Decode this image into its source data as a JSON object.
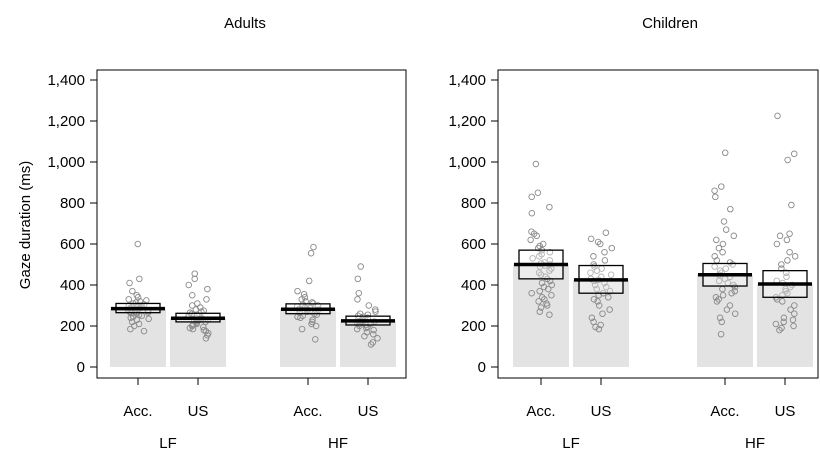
{
  "chart_data": {
    "type": "pirateplot",
    "ylabel": "Gaze duration (ms)",
    "ylim": [
      0,
      1400
    ],
    "yticks": [
      0,
      200,
      400,
      600,
      800,
      1000,
      1200,
      1400
    ],
    "ytick_labels": [
      "0",
      "200",
      "400",
      "600",
      "800",
      "1,000",
      "1,200",
      "1,400"
    ],
    "grid": false,
    "panels": [
      {
        "title": "Adults",
        "groups": [
          {
            "label": "LF",
            "conditions": [
              {
                "label": "Acc.",
                "mean": 285,
                "ci_low": 265,
                "ci_high": 310,
                "points": [
                  600,
                  430,
                  410,
                  370,
                  350,
                  340,
                  330,
                  325,
                  320,
                  315,
                  310,
                  305,
                  300,
                  298,
                  295,
                  292,
                  290,
                  288,
                  285,
                  282,
                  280,
                  278,
                  275,
                  272,
                  270,
                  268,
                  265,
                  262,
                  260,
                  255,
                  250,
                  245,
                  240,
                  235,
                  230,
                  220,
                  210,
                  200,
                  185,
                  175
                ]
              },
              {
                "label": "US",
                "mean": 238,
                "ci_low": 220,
                "ci_high": 262,
                "points": [
                  455,
                  430,
                  400,
                  380,
                  350,
                  330,
                  310,
                  300,
                  290,
                  280,
                  275,
                  270,
                  265,
                  260,
                  255,
                  250,
                  245,
                  240,
                  238,
                  235,
                  232,
                  230,
                  228,
                  225,
                  222,
                  220,
                  215,
                  210,
                  205,
                  200,
                  195,
                  190,
                  185,
                  180,
                  175,
                  165,
                  155,
                  140
                ]
              }
            ]
          },
          {
            "label": "HF",
            "conditions": [
              {
                "label": "Acc.",
                "mean": 282,
                "ci_low": 260,
                "ci_high": 308,
                "points": [
                  585,
                  555,
                  420,
                  370,
                  355,
                  340,
                  330,
                  320,
                  315,
                  310,
                  305,
                  300,
                  295,
                  290,
                  288,
                  285,
                  282,
                  280,
                  278,
                  275,
                  272,
                  270,
                  265,
                  260,
                  255,
                  250,
                  245,
                  240,
                  230,
                  220,
                  210,
                  200,
                  185,
                  135
                ]
              },
              {
                "label": "US",
                "mean": 225,
                "ci_low": 205,
                "ci_high": 248,
                "points": [
                  490,
                  430,
                  360,
                  330,
                  300,
                  280,
                  270,
                  260,
                  255,
                  250,
                  245,
                  240,
                  235,
                  230,
                  228,
                  225,
                  222,
                  220,
                  218,
                  215,
                  212,
                  210,
                  205,
                  200,
                  195,
                  190,
                  185,
                  180,
                  170,
                  160,
                  150,
                  140,
                  120,
                  110
                ]
              }
            ]
          }
        ]
      },
      {
        "title": "Children",
        "groups": [
          {
            "label": "LF",
            "conditions": [
              {
                "label": "Acc.",
                "mean": 500,
                "ci_low": 430,
                "ci_high": 570,
                "points": [
                  990,
                  850,
                  830,
                  780,
                  750,
                  660,
                  650,
                  640,
                  620,
                  600,
                  590,
                  580,
                  570,
                  560,
                  550,
                  540,
                  530,
                  520,
                  510,
                  505,
                  500,
                  495,
                  490,
                  480,
                  470,
                  460,
                  450,
                  440,
                  430,
                  420,
                  410,
                  400,
                  390,
                  380,
                  370,
                  360,
                  350,
                  340,
                  330,
                  320,
                  310,
                  300,
                  290,
                  270,
                  255
                ]
              },
              {
                "label": "US",
                "mean": 425,
                "ci_low": 360,
                "ci_high": 495,
                "points": [
                  655,
                  625,
                  610,
                  600,
                  580,
                  560,
                  540,
                  520,
                  500,
                  490,
                  480,
                  470,
                  460,
                  450,
                  440,
                  430,
                  425,
                  420,
                  410,
                  400,
                  390,
                  380,
                  370,
                  360,
                  350,
                  340,
                  330,
                  320,
                  300,
                  280,
                  260,
                  240,
                  220,
                  205,
                  195,
                  185
                ]
              }
            ]
          },
          {
            "label": "HF",
            "conditions": [
              {
                "label": "Acc.",
                "mean": 450,
                "ci_low": 395,
                "ci_high": 505,
                "points": [
                  1045,
                  880,
                  860,
                  830,
                  770,
                  710,
                  670,
                  640,
                  620,
                  600,
                  580,
                  560,
                  540,
                  520,
                  510,
                  500,
                  490,
                  480,
                  470,
                  460,
                  450,
                  440,
                  430,
                  420,
                  410,
                  400,
                  390,
                  380,
                  370,
                  360,
                  350,
                  340,
                  330,
                  320,
                  300,
                  280,
                  260,
                  240,
                  220,
                  160
                ]
              },
              {
                "label": "US",
                "mean": 405,
                "ci_low": 340,
                "ci_high": 470,
                "points": [
                  1225,
                  1040,
                  1010,
                  790,
                  650,
                  640,
                  620,
                  600,
                  560,
                  540,
                  520,
                  500,
                  480,
                  460,
                  440,
                  420,
                  410,
                  400,
                  390,
                  380,
                  370,
                  360,
                  350,
                  340,
                  330,
                  320,
                  300,
                  280,
                  260,
                  240,
                  230,
                  220,
                  210,
                  200,
                  190,
                  180
                ]
              }
            ]
          }
        ]
      }
    ]
  }
}
